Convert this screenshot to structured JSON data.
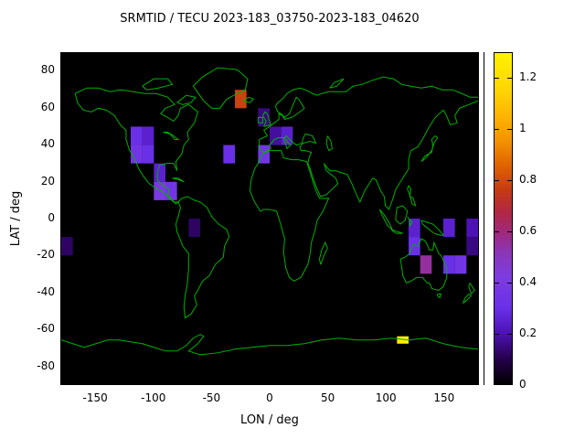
{
  "chart_data": {
    "type": "heatmap",
    "title": "SRMTID / TECU 2023-183_03750-2023-183_04620",
    "xlabel": "LON / deg",
    "ylabel": "LAT / deg",
    "xlim": [
      -180,
      180
    ],
    "ylim": [
      -90,
      90
    ],
    "x_ticks": [
      -150,
      -100,
      -50,
      0,
      50,
      100,
      150
    ],
    "y_ticks": [
      80,
      60,
      40,
      20,
      0,
      -20,
      -40,
      -60,
      -80
    ],
    "cell_size_deg": 10,
    "background_color": "#000000",
    "coast_color": "#00b000",
    "colorbar": {
      "min": 0,
      "max": 1.3,
      "ticks": [
        0,
        0.2,
        0.4,
        0.6,
        0.8,
        1,
        1.2
      ],
      "tick_labels": [
        "0",
        "0.2",
        "0.4",
        "0.6",
        "0.8",
        "1",
        "1.2"
      ]
    },
    "colormap_stops": [
      [
        0.0,
        "#000000"
      ],
      [
        0.1,
        "#26004d"
      ],
      [
        0.2,
        "#4c12b4"
      ],
      [
        0.3,
        "#6a30e8"
      ],
      [
        0.42,
        "#7d3ce0"
      ],
      [
        0.52,
        "#8c35b5"
      ],
      [
        0.6,
        "#a02878"
      ],
      [
        0.68,
        "#b22840"
      ],
      [
        0.76,
        "#c43a14"
      ],
      [
        0.86,
        "#e06400"
      ],
      [
        0.95,
        "#f29100"
      ],
      [
        1.05,
        "#ffb300"
      ],
      [
        1.15,
        "#ffd400"
      ],
      [
        1.3,
        "#fff200"
      ]
    ],
    "cells": [
      {
        "lon": -30,
        "lat": 60,
        "v": 0.78
      },
      {
        "lon": -10,
        "lat": 50,
        "v": 0.15
      },
      {
        "lon": 0,
        "lat": 40,
        "v": 0.18
      },
      {
        "lon": 10,
        "lat": 40,
        "v": 0.25
      },
      {
        "lon": -10,
        "lat": 30,
        "v": 0.35
      },
      {
        "lon": -40,
        "lat": 30,
        "v": 0.3
      },
      {
        "lon": -120,
        "lat": 40,
        "v": 0.3
      },
      {
        "lon": -110,
        "lat": 40,
        "v": 0.25
      },
      {
        "lon": -120,
        "lat": 30,
        "v": 0.35
      },
      {
        "lon": -110,
        "lat": 30,
        "v": 0.3
      },
      {
        "lon": -100,
        "lat": 20,
        "v": 0.25
      },
      {
        "lon": -100,
        "lat": 10,
        "v": 0.4
      },
      {
        "lon": -90,
        "lat": 10,
        "v": 0.35
      },
      {
        "lon": -70,
        "lat": -10,
        "v": 0.12
      },
      {
        "lon": -180,
        "lat": -20,
        "v": 0.12
      },
      {
        "lon": 120,
        "lat": -10,
        "v": 0.25
      },
      {
        "lon": 120,
        "lat": -20,
        "v": 0.3
      },
      {
        "lon": 130,
        "lat": -30,
        "v": 0.55
      },
      {
        "lon": 150,
        "lat": -30,
        "v": 0.3
      },
      {
        "lon": 160,
        "lat": -30,
        "v": 0.35
      },
      {
        "lon": 150,
        "lat": -10,
        "v": 0.25
      },
      {
        "lon": 170,
        "lat": -10,
        "v": 0.2
      },
      {
        "lon": 170,
        "lat": -20,
        "v": 0.15
      },
      {
        "lon": 110,
        "lat": -68,
        "v": 1.28,
        "h": 4
      }
    ]
  }
}
